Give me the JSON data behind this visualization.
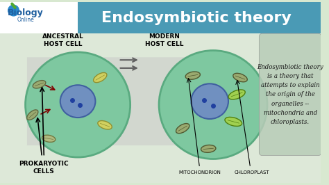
{
  "title": "Endosymbiotic theory",
  "bg_color": "#e8f0e8",
  "header_bg": "#4a9ab5",
  "header_text_color": "#ffffff",
  "header_fontsize": 18,
  "main_bg": "#d8e8d0",
  "cell_color": "#7ec8a0",
  "cell_outline": "#5aaa80",
  "nucleus_color": "#7090c0",
  "nucleus_outline": "#4060a0",
  "mito_color": "#c8c860",
  "mito_outline": "#909030",
  "chloro_color": "#90c840",
  "chloro_outline": "#509010",
  "prokaryote_color": "#b0b870",
  "prokaryote_outline": "#707840",
  "ancestral_label": "ANCESTRAL\nHOST CELL",
  "modern_label": "MODERN\nHOST CELL",
  "prokaryotic_label": "PROKARYOTIC\nCELLS",
  "mito_label": "MITOCHONDRION",
  "chloro_label": "CHLOROPLAST",
  "description": "Endosymbiotic theory\nis a theory that\nattempts to explain\nthe origin of the\norganelles --\nmitochondria and\nchloroplasts.",
  "desc_bg": "#c8d8c8",
  "logo_text": "Biology\nOnline",
  "logo_bg": "#ffffff"
}
